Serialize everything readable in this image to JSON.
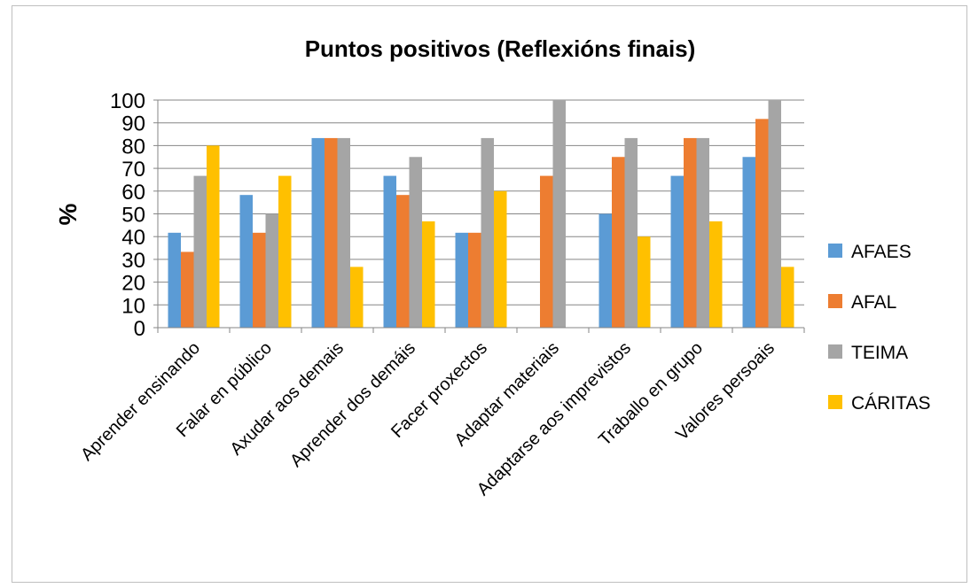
{
  "chart_data": {
    "type": "bar",
    "title": "Puntos positivos (Reflexións finais)",
    "xlabel": "",
    "ylabel": "%",
    "ylim": [
      0,
      100
    ],
    "yticks": [
      0,
      10,
      20,
      30,
      40,
      50,
      60,
      70,
      80,
      90,
      100
    ],
    "grid": true,
    "legend_position": "right",
    "categories": [
      "Aprender ensinando",
      "Falar en público",
      "Axudar aos demais",
      "Aprender dos demáis",
      "Facer proxectos",
      "Adaptar materiais",
      "Adaptarse aos imprevistos",
      "Traballo en grupo",
      "Valores persoais"
    ],
    "series": [
      {
        "name": "AFAES",
        "color": "#5b9bd5",
        "values": [
          41.7,
          58.3,
          83.3,
          66.7,
          41.7,
          0,
          50,
          66.7,
          75
        ]
      },
      {
        "name": "AFAL",
        "color": "#ed7d31",
        "values": [
          33.3,
          41.7,
          83.3,
          58.3,
          41.7,
          66.7,
          75,
          83.3,
          91.7
        ]
      },
      {
        "name": "TEIMA",
        "color": "#a5a5a5",
        "values": [
          66.7,
          50,
          83.3,
          75,
          83.3,
          100,
          83.3,
          83.3,
          100
        ]
      },
      {
        "name": "CÁRITAS",
        "color": "#ffc000",
        "values": [
          80,
          66.7,
          26.7,
          46.7,
          60,
          0,
          40,
          46.7,
          26.7
        ]
      }
    ]
  }
}
